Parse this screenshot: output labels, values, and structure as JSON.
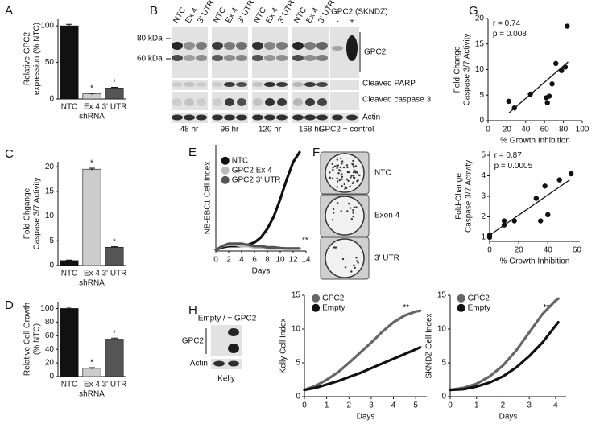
{
  "panel_labels": [
    "A",
    "B",
    "C",
    "D",
    "E",
    "F",
    "G",
    "H"
  ],
  "chart_data": [
    {
      "type": "bar",
      "ylabel": [
        "Relative GPC2",
        "expression (% NTC)"
      ],
      "xlabel": "shRNA",
      "categories": [
        "NTC",
        "Ex 4",
        "3' UTR"
      ],
      "values": [
        100,
        7,
        15
      ],
      "errors": [
        2,
        1,
        1
      ],
      "colors": [
        "#111111",
        "#cccccc",
        "#555555"
      ],
      "value_annotations": [
        null,
        "*",
        "*"
      ],
      "ylim": [
        0,
        110
      ],
      "yticks": [
        0,
        50,
        100
      ]
    },
    {
      "type": "bar",
      "ylabel": [
        "Fold-Chgange",
        "Caspase 3/7 Activity"
      ],
      "xlabel": "shRNA",
      "categories": [
        "NTC",
        "Ex 4",
        "3' UTR"
      ],
      "values": [
        1,
        19.5,
        3.7
      ],
      "errors": [
        0.1,
        0.2,
        0.1
      ],
      "colors": [
        "#111111",
        "#cccccc",
        "#555555"
      ],
      "value_annotations": [
        null,
        "*",
        "*"
      ],
      "ylim": [
        0,
        21
      ],
      "yticks": [
        0,
        5,
        10,
        15,
        20
      ]
    },
    {
      "type": "bar",
      "ylabel": [
        "Relative Cell Growth",
        "(% NTC)"
      ],
      "xlabel": "shRNA",
      "categories": [
        "NTC",
        "Ex 4",
        "3' UTR"
      ],
      "values": [
        100,
        12,
        55
      ],
      "errors": [
        2,
        1,
        1.5
      ],
      "colors": [
        "#111111",
        "#cccccc",
        "#555555"
      ],
      "value_annotations": [
        null,
        "*",
        "*"
      ],
      "ylim": [
        0,
        110
      ],
      "yticks": [
        0,
        20,
        40,
        60,
        80,
        100
      ]
    },
    {
      "type": "line",
      "ylabel": [
        "NB-EBC1 Cell Index"
      ],
      "xlabel": "Days",
      "x": [
        0,
        1,
        2,
        3,
        4,
        5,
        6,
        7,
        8,
        9,
        10,
        11,
        12,
        13
      ],
      "series": [
        {
          "name": "NTC",
          "color": "#111111",
          "values": [
            0.05,
            0.15,
            0.2,
            0.2,
            0.2,
            0.25,
            0.35,
            0.55,
            0.9,
            1.4,
            2.1,
            2.9,
            3.6,
            4.0
          ]
        },
        {
          "name": "GPC2 Ex 4",
          "color": "#bbbbbb",
          "values": [
            0.05,
            0.2,
            0.25,
            0.25,
            0.2,
            0.2,
            0.15,
            0.15,
            0.1,
            0.1,
            0.1,
            0.1,
            0.1,
            0.1
          ]
        },
        {
          "name": "GPC2 3' UTR",
          "color": "#555555",
          "values": [
            0.05,
            0.2,
            0.3,
            0.3,
            0.3,
            0.25,
            0.2,
            0.2,
            0.15,
            0.15,
            0.12,
            0.1,
            0.1,
            0.1
          ]
        }
      ],
      "annotations": [
        "**"
      ],
      "legend": "upper left",
      "xlim": [
        0,
        14
      ],
      "xticks": [
        0,
        2,
        4,
        6,
        8,
        10,
        12,
        14
      ],
      "ylim": [
        0,
        4.3
      ]
    },
    {
      "type": "scatter",
      "ylabel": [
        "Fold-Change",
        "Caspase 3/7 Activity"
      ],
      "xlabel": "% Growth Inhibition",
      "x": [
        22,
        28,
        45,
        62,
        63,
        65,
        68,
        72,
        78,
        82,
        84
      ],
      "values": [
        3.8,
        2.5,
        5.2,
        4.5,
        3.5,
        4.8,
        7.2,
        11.2,
        9.8,
        10.5,
        18.5
      ],
      "color": "#111111",
      "fit": {
        "x": [
          22,
          85
        ],
        "values": [
          1.5,
          11.5
        ]
      },
      "annotations": [
        "r = 0.74",
        "p = 0.008"
      ],
      "xlim": [
        0,
        100
      ],
      "xticks": [
        0,
        20,
        40,
        60,
        80,
        100
      ],
      "ylim": [
        0,
        20
      ],
      "yticks": [
        0,
        5,
        10,
        15,
        20
      ]
    },
    {
      "type": "scatter",
      "ylabel": [
        "Fold-Change",
        "Caspase 3/7 Activity"
      ],
      "xlabel": "% Growth Inhibition",
      "x": [
        0,
        0,
        10,
        10,
        17,
        32,
        35,
        38,
        40,
        48,
        56
      ],
      "values": [
        1.0,
        1.1,
        1.6,
        1.8,
        1.8,
        2.9,
        1.8,
        3.5,
        2.1,
        3.8,
        4.1
      ],
      "color": "#111111",
      "fit": {
        "x": [
          0,
          55
        ],
        "values": [
          1.1,
          3.8
        ]
      },
      "annotations": [
        "r = 0.87",
        "p = 0.0005"
      ],
      "xlim": [
        0,
        62
      ],
      "xticks": [
        0,
        20,
        40,
        60
      ],
      "ylim": [
        0.8,
        5.2
      ],
      "yticks": [
        1,
        2,
        3,
        4,
        5
      ]
    },
    {
      "type": "line",
      "ylabel": [
        "Kelly Cell Index"
      ],
      "xlabel": "Days",
      "x": [
        0,
        0.5,
        1,
        1.5,
        2,
        2.5,
        3,
        3.5,
        4,
        4.5,
        5,
        5.2
      ],
      "series": [
        {
          "name": "GPC2",
          "color": "#666666",
          "values": [
            1,
            1.6,
            2.5,
            3.6,
            5,
            6.5,
            8,
            9.6,
            11,
            12,
            12.6,
            12.7
          ]
        },
        {
          "name": "Empty",
          "color": "#111111",
          "values": [
            1,
            1.3,
            1.8,
            2.3,
            2.9,
            3.5,
            4.2,
            4.9,
            5.6,
            6.3,
            7,
            7.3
          ]
        }
      ],
      "annotations": [
        "**"
      ],
      "legend": "upper left",
      "xlim": [
        0,
        5.5
      ],
      "xticks": [
        0,
        1,
        2,
        3,
        4,
        5
      ],
      "ylim": [
        0,
        15
      ],
      "yticks": [
        0,
        5,
        10,
        15
      ]
    },
    {
      "type": "line",
      "ylabel": [
        "SKNDZ Cell Index"
      ],
      "xlabel": "Days",
      "x": [
        0,
        0.5,
        1,
        1.5,
        2,
        2.5,
        3,
        3.5,
        4,
        4.1
      ],
      "series": [
        {
          "name": "GPC2",
          "color": "#666666",
          "values": [
            1,
            1.3,
            1.9,
            3,
            4.6,
            6.8,
            9.5,
            12.2,
            14.2,
            14.5
          ]
        },
        {
          "name": "Empty",
          "color": "#111111",
          "values": [
            1,
            1.1,
            1.5,
            2.1,
            3,
            4.3,
            6,
            8,
            10.5,
            11
          ]
        }
      ],
      "annotations": [
        "**"
      ],
      "legend": "upper left",
      "xlim": [
        0,
        4.4
      ],
      "xticks": [
        0,
        1,
        2,
        3,
        4
      ],
      "ylim": [
        0,
        15
      ],
      "yticks": [
        0,
        5,
        10,
        15
      ]
    }
  ],
  "blot_B": {
    "lane_labels": [
      "NTC",
      "Ex 4",
      "3' UTR"
    ],
    "control_title": "GPC2 (SKNDZ)",
    "control_lanes": [
      "-",
      "+"
    ],
    "markers": [
      "80 kDa",
      "60 kDa"
    ],
    "bands": [
      "GPC2",
      "Cleaved PARP",
      "Cleaved caspase 3",
      "Actin"
    ],
    "timepoints": [
      "48 hr",
      "96 hr",
      "120 hr",
      "168 hr",
      "GPC2 + control"
    ]
  },
  "colony_F": {
    "labels": [
      "NTC",
      "Exon 4",
      "3' UTR"
    ]
  },
  "blot_H": {
    "title": "Empty / + GPC2",
    "bands": [
      "GPC2",
      "Actin"
    ],
    "cell_line": "Kelly"
  }
}
